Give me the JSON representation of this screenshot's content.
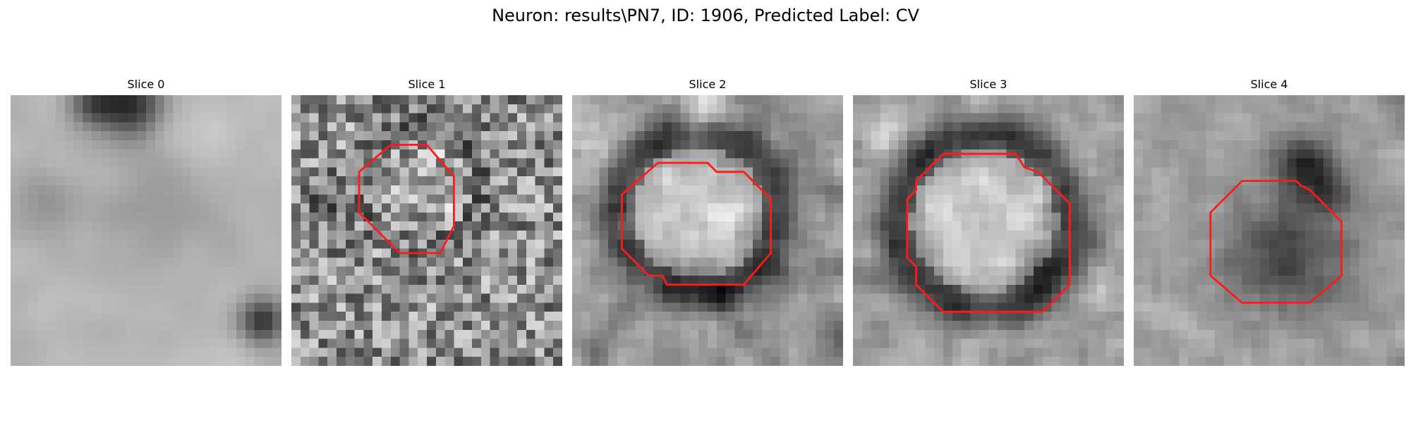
{
  "figure": {
    "title": "Neuron: results\\PN7, ID: 1906, Predicted Label: CV"
  },
  "grid_size": 30,
  "contour_color": "#ff1a1a",
  "panels": [
    {
      "title": "Slice 0",
      "seed": 11,
      "noise": 0.05,
      "smooth": 3,
      "base": 0.72,
      "ring": null,
      "blobs": [
        {
          "x": 13,
          "y": 1,
          "r": 3.5,
          "d": -0.55
        },
        {
          "x": 9,
          "y": 1,
          "r": 2.5,
          "d": -0.35
        },
        {
          "x": 28,
          "y": 25,
          "r": 2.5,
          "d": -0.55
        },
        {
          "x": 16,
          "y": 12,
          "r": 6,
          "d": -0.12
        },
        {
          "x": 3,
          "y": 12,
          "r": 4,
          "d": -0.1
        },
        {
          "x": 22,
          "y": 5,
          "r": 4,
          "d": 0.08
        }
      ],
      "contour": null
    },
    {
      "title": "Slice 1",
      "seed": 22,
      "noise": 0.3,
      "smooth": 0,
      "base": 0.56,
      "ring": {
        "cx": 14.5,
        "cy": 10,
        "r": 6.5,
        "w": 1.6,
        "depth": 0.1,
        "inner": 0.08
      },
      "blobs": [
        {
          "x": 4,
          "y": 12,
          "r": 2.5,
          "d": -0.15
        }
      ],
      "contour": [
        [
          11.0,
          5.5
        ],
        [
          15.0,
          5.5
        ],
        [
          18.0,
          9.0
        ],
        [
          18.0,
          14.5
        ],
        [
          16.5,
          17.5
        ],
        [
          12.0,
          17.5
        ],
        [
          9.5,
          15.0
        ],
        [
          7.5,
          13.0
        ],
        [
          7.5,
          8.5
        ]
      ]
    },
    {
      "title": "Slice 2",
      "seed": 33,
      "noise": 0.2,
      "smooth": 1,
      "base": 0.58,
      "ring": {
        "cx": 14,
        "cy": 13,
        "r": 8.8,
        "w": 2.4,
        "depth": 0.35,
        "inner": 0.2
      },
      "blobs": [
        {
          "x": 1.5,
          "y": 6,
          "r": 3,
          "d": 0.22
        },
        {
          "x": 15,
          "y": 2,
          "r": 3,
          "d": 0.2
        },
        {
          "x": 17,
          "y": 22,
          "r": 2,
          "d": -0.2
        }
      ],
      "contour": [
        [
          9.5,
          7.5
        ],
        [
          15.0,
          7.5
        ],
        [
          16.0,
          8.5
        ],
        [
          19.0,
          8.5
        ],
        [
          22.0,
          11.5
        ],
        [
          22.0,
          17.5
        ],
        [
          19.0,
          21.0
        ],
        [
          10.5,
          21.0
        ],
        [
          10.0,
          20.0
        ],
        [
          8.5,
          20.0
        ],
        [
          5.5,
          17.0
        ],
        [
          5.5,
          11.0
        ]
      ]
    },
    {
      "title": "Slice 3",
      "seed": 44,
      "noise": 0.18,
      "smooth": 1,
      "base": 0.62,
      "ring": {
        "cx": 14.5,
        "cy": 14,
        "r": 9.5,
        "w": 2.4,
        "depth": 0.38,
        "inner": 0.18
      },
      "blobs": [
        {
          "x": 3,
          "y": 3,
          "r": 2.5,
          "d": 0.18
        },
        {
          "x": 21,
          "y": 19,
          "r": 2,
          "d": -0.25
        }
      ],
      "contour": [
        [
          10.0,
          6.5
        ],
        [
          18.0,
          6.5
        ],
        [
          19.0,
          8.0
        ],
        [
          20.5,
          8.5
        ],
        [
          22.0,
          10.0
        ],
        [
          24.0,
          12.0
        ],
        [
          24.0,
          21.0
        ],
        [
          21.0,
          24.0
        ],
        [
          10.0,
          24.0
        ],
        [
          7.0,
          21.0
        ],
        [
          7.0,
          19.0
        ],
        [
          6.0,
          18.0
        ],
        [
          6.0,
          11.5
        ],
        [
          7.0,
          10.5
        ],
        [
          7.0,
          9.5
        ]
      ]
    },
    {
      "title": "Slice 4",
      "seed": 55,
      "noise": 0.15,
      "smooth": 1,
      "base": 0.63,
      "ring": null,
      "blobs": [
        {
          "x": 17,
          "y": 18,
          "r": 6.5,
          "d": -0.38
        },
        {
          "x": 18.5,
          "y": 8,
          "r": 3.5,
          "d": -0.4
        },
        {
          "x": 22,
          "y": 11,
          "r": 3,
          "d": -0.2
        },
        {
          "x": 6,
          "y": 26,
          "r": 3,
          "d": 0.1
        },
        {
          "x": 5,
          "y": 5,
          "r": 3,
          "d": -0.05
        }
      ],
      "contour": [
        [
          12.0,
          9.5
        ],
        [
          18.0,
          9.5
        ],
        [
          18.5,
          10.0
        ],
        [
          19.5,
          10.5
        ],
        [
          23.0,
          14.0
        ],
        [
          23.0,
          20.0
        ],
        [
          19.5,
          23.0
        ],
        [
          12.0,
          23.0
        ],
        [
          8.5,
          20.0
        ],
        [
          8.5,
          13.0
        ]
      ]
    }
  ]
}
